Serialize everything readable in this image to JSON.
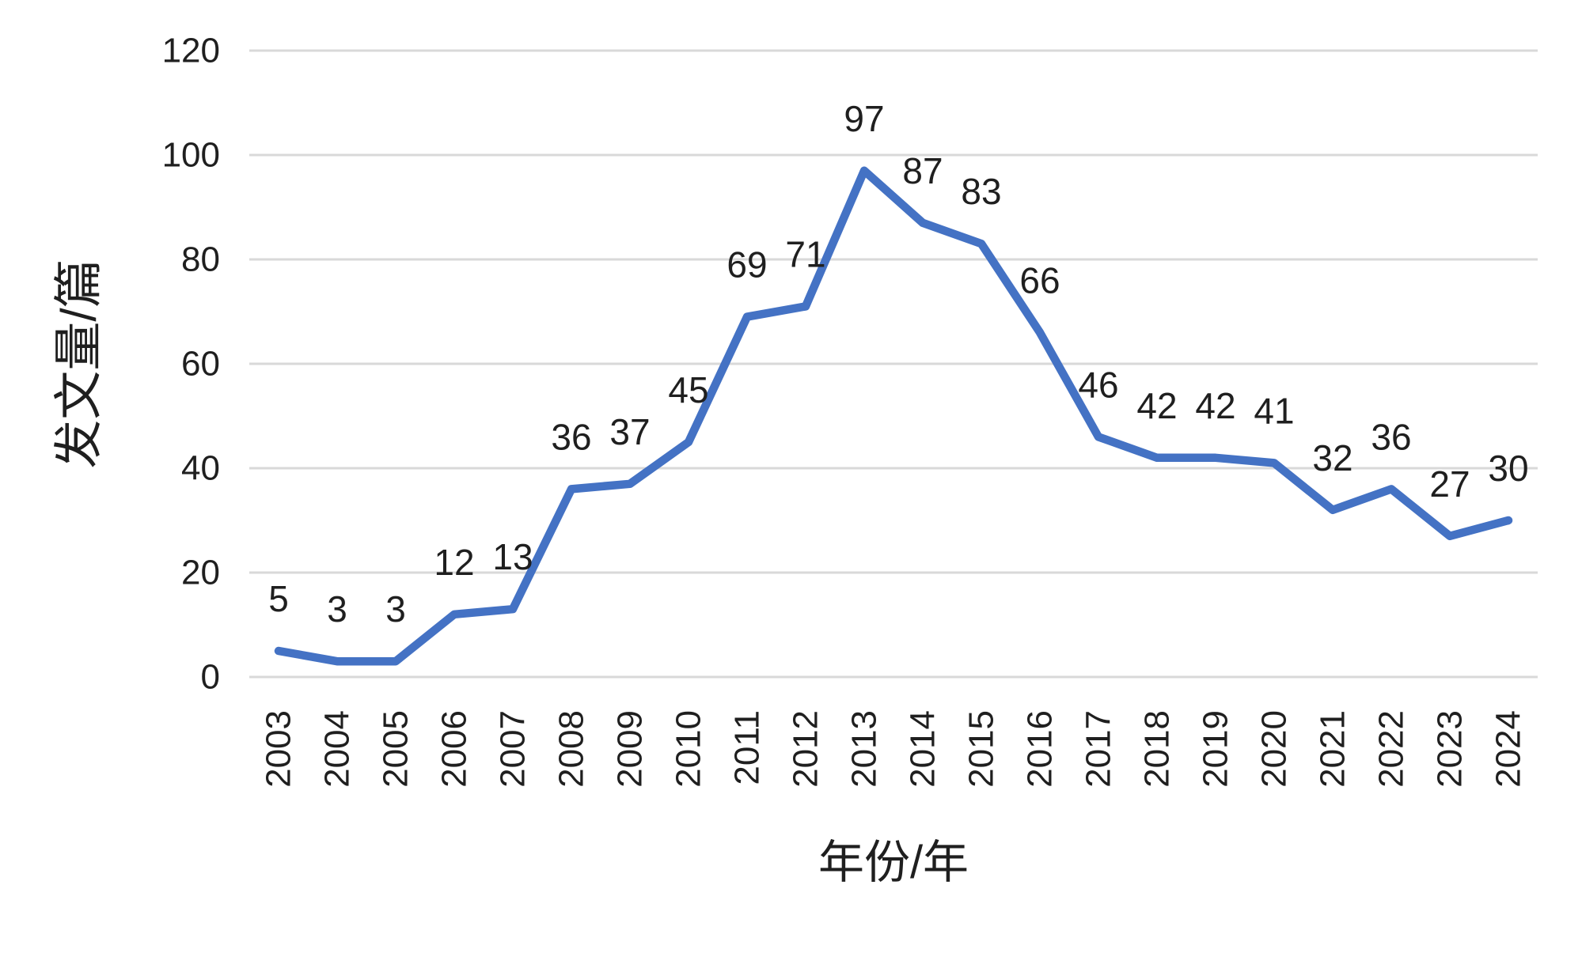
{
  "chart_data": {
    "type": "line",
    "title": "",
    "categories": [
      "2003",
      "2004",
      "2005",
      "2006",
      "2007",
      "2008",
      "2009",
      "2010",
      "2011",
      "2012",
      "2013",
      "2014",
      "2015",
      "2016",
      "2017",
      "2018",
      "2019",
      "2020",
      "2021",
      "2022",
      "2023",
      "2024"
    ],
    "series": [
      {
        "name": "发文量",
        "values": [
          5,
          3,
          3,
          12,
          13,
          36,
          37,
          45,
          69,
          71,
          97,
          87,
          83,
          66,
          46,
          42,
          42,
          41,
          32,
          36,
          27,
          30
        ]
      }
    ],
    "data_labels": [
      5,
      3,
      3,
      12,
      13,
      36,
      37,
      45,
      69,
      71,
      97,
      87,
      83,
      66,
      46,
      42,
      42,
      41,
      32,
      36,
      27,
      30
    ],
    "xlabel": "年份/年",
    "ylabel": "发文量/篇",
    "ylim": [
      0,
      120
    ],
    "yticks": [
      0,
      20,
      40,
      60,
      80,
      100,
      120
    ],
    "grid": true,
    "gridlines": "horizontal",
    "legend_position": "none",
    "colors": {
      "line": "#4472C4",
      "gridline": "#D9D9D9",
      "text": "#1F1F1F",
      "background": "#FFFFFF"
    }
  }
}
